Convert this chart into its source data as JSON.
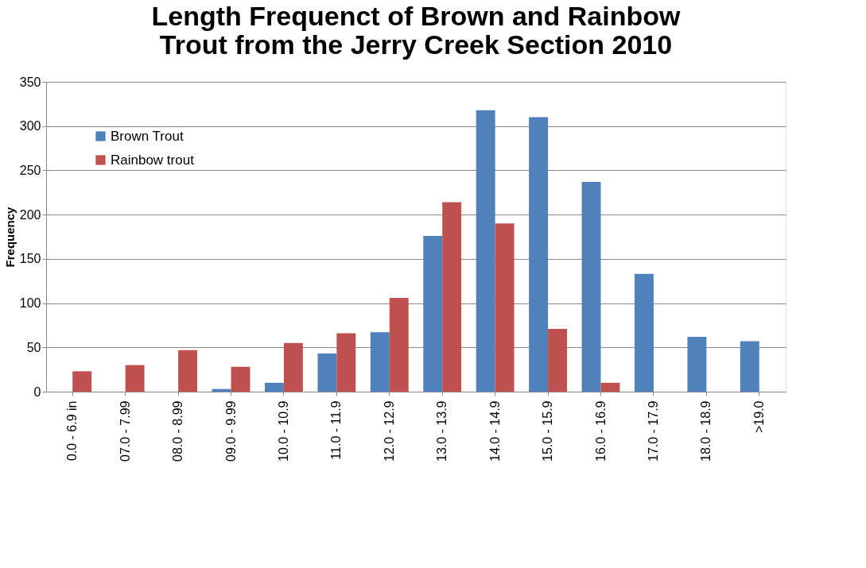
{
  "chart_data": {
    "type": "bar",
    "title": "Length Frequenct of Brown and Rainbow Trout from the Jerry Creek Section 2010",
    "ylabel": "Frequency",
    "categories": [
      "0.0 - 6.9 in",
      "07.0 - 7.99",
      "08.0 - 8.99",
      "09.0 - 9.99",
      "10.0 - 10.9",
      "11.0 - 11.9",
      "12.0 - 12.9",
      "13.0 - 13.9",
      "14.0 - 14.9",
      "15.0 - 15.9",
      "16.0 - 16.9",
      "17.0 - 17.9",
      "18.0 - 18.9",
      ">19.0"
    ],
    "series": [
      {
        "name": "Brown Trout",
        "color": "#4f81bd",
        "values": [
          null,
          null,
          null,
          3,
          10,
          43,
          67,
          176,
          318,
          310,
          237,
          133,
          62,
          57
        ]
      },
      {
        "name": "Rainbow trout",
        "color": "#c0504d",
        "values": [
          23,
          30,
          47,
          28,
          55,
          66,
          106,
          214,
          190,
          71,
          10,
          null,
          null,
          null
        ]
      }
    ],
    "ylim": [
      0,
      350
    ],
    "yticks": [
      0,
      50,
      100,
      150,
      200,
      250,
      300,
      350
    ],
    "grid": "y",
    "legend": "top left"
  }
}
